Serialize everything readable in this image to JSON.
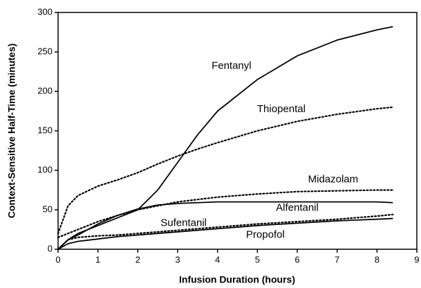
{
  "chart_data": {
    "type": "line",
    "xlabel": "Infusion Duration (hours)",
    "ylabel": "Context-Sensitive Half-Time (minutes)",
    "x": [
      0,
      0.25,
      0.5,
      1,
      1.5,
      2,
      2.5,
      3,
      3.5,
      4,
      5,
      6,
      7,
      8,
      8.4
    ],
    "series": [
      {
        "name": "Fentanyl",
        "color": "#000000",
        "style": "solid",
        "values": [
          0,
          12,
          20,
          30,
          40,
          50,
          75,
          110,
          145,
          175,
          215,
          245,
          265,
          278,
          282
        ]
      },
      {
        "name": "Thiopental",
        "color": "#000000",
        "style": "dotted",
        "values": [
          20,
          55,
          68,
          80,
          88,
          97,
          108,
          118,
          127,
          135,
          150,
          162,
          171,
          178,
          180
        ]
      },
      {
        "name": "Midazolam",
        "color": "#000000",
        "style": "dotted",
        "values": [
          15,
          20,
          25,
          35,
          43,
          50,
          55,
          60,
          63,
          66,
          70,
          73,
          74,
          75,
          75
        ]
      },
      {
        "name": "Alfentanil",
        "color": "#000000",
        "style": "solid",
        "values": [
          0,
          12,
          18,
          32,
          43,
          51,
          56,
          58,
          59,
          60,
          60,
          60,
          60,
          60,
          59
        ]
      },
      {
        "name": "Sufentanil",
        "color": "#000000",
        "style": "dotted",
        "values": [
          0,
          12,
          15,
          17,
          18,
          20,
          22,
          24,
          26,
          28,
          32,
          35,
          38,
          42,
          44
        ]
      },
      {
        "name": "Propofol",
        "color": "#000000",
        "style": "solid",
        "values": [
          0,
          7,
          10,
          13,
          16,
          18,
          20,
          22,
          24,
          26,
          30,
          33,
          36,
          38,
          39
        ]
      }
    ],
    "xlim": [
      0,
      9
    ],
    "xticks": [
      0,
      1,
      2,
      3,
      4,
      5,
      6,
      7,
      8,
      9
    ],
    "ylim": [
      0,
      300
    ],
    "yticks": [
      0,
      50,
      100,
      150,
      200,
      250,
      300
    ]
  }
}
